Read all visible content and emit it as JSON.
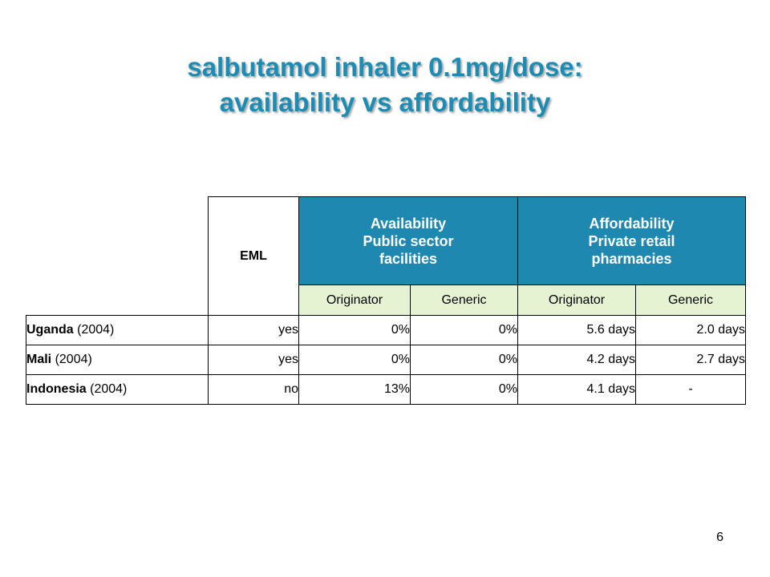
{
  "title": {
    "line1": "salbutamol inhaler 0.1mg/dose:",
    "line2": "availability vs affordability"
  },
  "colors": {
    "title": "#1c8cb4",
    "group_header_bg": "#1f88b0",
    "subheader_bg": "#e6f3d3"
  },
  "table": {
    "eml_header": "EML",
    "availability_header": {
      "line1": "Availability",
      "line2": "Public sector",
      "line3": "facilities"
    },
    "affordability_header": {
      "line1": "Affordability",
      "line2": "Private retail",
      "line3": "pharmacies"
    },
    "subheaders": [
      "Originator",
      "Generic",
      "Originator",
      "Generic"
    ],
    "rows": [
      {
        "country": "Uganda",
        "year": " (2004)",
        "eml": "yes",
        "avail_originator": "0%",
        "avail_generic": "0%",
        "afford_originator": "5.6 days",
        "afford_generic": "2.0 days"
      },
      {
        "country": "Mali",
        "year": " (2004)",
        "eml": "yes",
        "avail_originator": "0%",
        "avail_generic": "0%",
        "afford_originator": "4.2 days",
        "afford_generic": "2.7 days"
      },
      {
        "country": "Indonesia",
        "year": " (2004)",
        "eml": "no",
        "avail_originator": "13%",
        "avail_generic": "0%",
        "afford_originator": "4.1 days",
        "afford_generic": "-"
      }
    ]
  },
  "page_number": "6"
}
